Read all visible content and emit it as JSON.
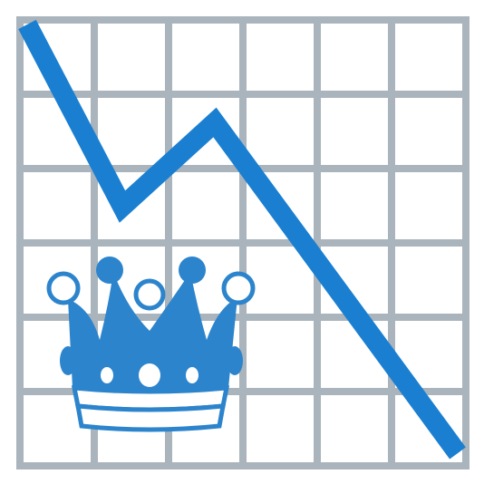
{
  "colors": {
    "background": "#ffffff",
    "grid": "#aab4bc",
    "trend_line": "#1b7fd1",
    "crown_fill": "#2c84cc",
    "crown_outline": "#2c84cc",
    "crown_light": "#ffffff"
  },
  "icons": {
    "chart": "declining-line-chart-icon",
    "crown": "crown-icon"
  }
}
